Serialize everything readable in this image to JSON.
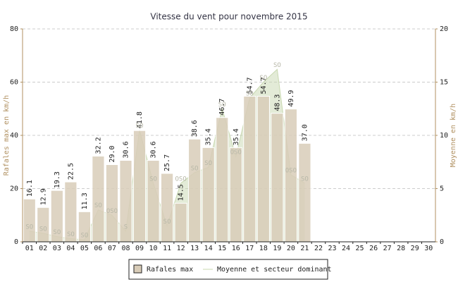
{
  "chart_data": {
    "type": "bar",
    "title": "Vitesse du vent pour novembre 2015",
    "ylabel": "Rafales max en km/h",
    "y2label": "Moyenne en km/h",
    "categories": [
      "01",
      "02",
      "03",
      "04",
      "05",
      "06",
      "07",
      "08",
      "09",
      "10",
      "11",
      "12",
      "13",
      "14",
      "15",
      "16",
      "17",
      "18",
      "19",
      "20",
      "21",
      "22",
      "23",
      "24",
      "25",
      "26",
      "27",
      "28",
      "29",
      "30"
    ],
    "series": [
      {
        "name": "Rafales max",
        "color": "#d8ccb8",
        "values": [
          16.1,
          12.9,
          19.3,
          22.5,
          11.3,
          32.2,
          29.0,
          30.6,
          41.8,
          30.6,
          25.7,
          14.5,
          38.6,
          35.4,
          46.7,
          35.4,
          54.7,
          54.7,
          48.3,
          49.9,
          37.0,
          null,
          null,
          null,
          null,
          null,
          null,
          null,
          null,
          null
        ],
        "value_labels": [
          "16.1",
          "12.9",
          "19.3",
          "22.5",
          "11.3",
          "32.2",
          "29.0",
          "30.6",
          "41.8",
          "30.6",
          "25.7",
          "14.5",
          "38.6",
          "35.4",
          "46.7",
          "35.4",
          "54.7",
          "54.7",
          "48.3",
          "49.9",
          "37.0",
          null,
          null,
          null,
          null,
          null,
          null,
          null,
          null,
          null
        ]
      },
      {
        "name": "Moyenne et secteur dominant",
        "color": "#c8d8b0",
        "axis": "y2",
        "values": [
          1.0,
          0.8,
          0.5,
          0.3,
          0.2,
          3.0,
          2.5,
          1.0,
          10.5,
          5.5,
          1.5,
          5.5,
          6.5,
          7.0,
          12.5,
          8.0,
          13.5,
          15.0,
          16.2,
          6.3,
          5.5,
          null,
          null,
          null,
          null,
          null,
          null,
          null,
          null,
          null
        ],
        "sectors": [
          "SO",
          "SO",
          "SO",
          "SO",
          "SO",
          "SO",
          "OSO",
          "S",
          "SO",
          "SO",
          "SO",
          "OSO",
          "SO",
          "SO",
          "SO",
          "OSO",
          "SO",
          "SO",
          "SO",
          "OSO",
          "SO",
          null,
          null,
          null,
          null,
          null,
          null,
          null,
          null,
          null
        ]
      }
    ],
    "ylim": [
      0,
      80
    ],
    "yticks": [
      0,
      20,
      40,
      60,
      80
    ],
    "y2lim": [
      0,
      20
    ],
    "y2ticks": [
      0,
      5,
      10,
      15,
      20
    ],
    "grid": true
  }
}
